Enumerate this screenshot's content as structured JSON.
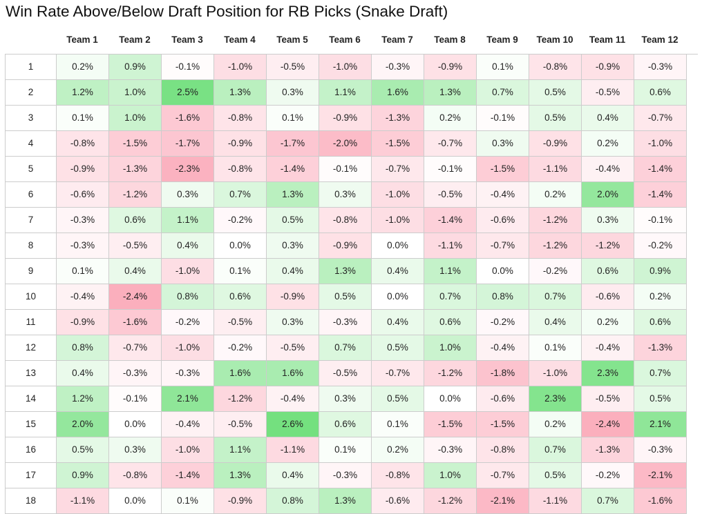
{
  "chart_data": {
    "type": "heatmap",
    "title": "Win Rate Above/Below Draft Position for RB Picks (Snake Draft)",
    "columns": [
      "Team 1",
      "Team 2",
      "Team 3",
      "Team 4",
      "Team 5",
      "Team 6",
      "Team 7",
      "Team 8",
      "Team 9",
      "Team 10",
      "Team 11",
      "Team 12"
    ],
    "rows": [
      "1",
      "2",
      "3",
      "4",
      "5",
      "6",
      "7",
      "8",
      "9",
      "10",
      "11",
      "12",
      "13",
      "14",
      "15",
      "16",
      "17",
      "18"
    ],
    "values": [
      [
        0.2,
        0.9,
        -0.1,
        -1.0,
        -0.5,
        -1.0,
        -0.3,
        -0.9,
        0.1,
        -0.8,
        -0.9,
        -0.3
      ],
      [
        1.2,
        1.0,
        2.5,
        1.3,
        0.3,
        1.1,
        1.6,
        1.3,
        0.7,
        0.5,
        -0.5,
        0.6
      ],
      [
        0.1,
        1.0,
        -1.6,
        -0.8,
        0.1,
        -0.9,
        -1.3,
        0.2,
        -0.1,
        0.5,
        0.4,
        -0.7
      ],
      [
        -0.8,
        -1.5,
        -1.7,
        -0.9,
        -1.7,
        -2.0,
        -1.5,
        -0.7,
        0.3,
        -0.9,
        0.2,
        -1.0
      ],
      [
        -0.9,
        -1.3,
        -2.3,
        -0.8,
        -1.4,
        -0.1,
        -0.7,
        -0.1,
        -1.5,
        -1.1,
        -0.4,
        -1.4
      ],
      [
        -0.6,
        -1.2,
        0.3,
        0.7,
        1.3,
        0.3,
        -1.0,
        -0.5,
        -0.4,
        0.2,
        2.0,
        -1.4
      ],
      [
        -0.3,
        0.6,
        1.1,
        -0.2,
        0.5,
        -0.8,
        -1.0,
        -1.4,
        -0.6,
        -1.2,
        0.3,
        -0.1
      ],
      [
        -0.3,
        -0.5,
        0.4,
        0.0,
        0.3,
        -0.9,
        0.0,
        -1.1,
        -0.7,
        -1.2,
        -1.2,
        -0.2
      ],
      [
        0.1,
        0.4,
        -1.0,
        0.1,
        0.4,
        1.3,
        0.4,
        1.1,
        0.0,
        -0.2,
        0.6,
        0.9
      ],
      [
        -0.4,
        -2.4,
        0.8,
        0.6,
        -0.9,
        0.5,
        0.0,
        0.7,
        0.8,
        0.7,
        -0.6,
        0.2
      ],
      [
        -0.9,
        -1.6,
        -0.2,
        -0.5,
        0.3,
        -0.3,
        0.4,
        0.6,
        -0.2,
        0.4,
        0.2,
        0.6
      ],
      [
        0.8,
        -0.7,
        -1.0,
        -0.2,
        -0.5,
        0.7,
        0.5,
        1.0,
        -0.4,
        0.1,
        -0.4,
        -1.3
      ],
      [
        0.4,
        -0.3,
        -0.3,
        1.6,
        1.6,
        -0.5,
        -0.7,
        -1.2,
        -1.8,
        -1.0,
        2.3,
        0.7
      ],
      [
        1.2,
        -0.1,
        2.1,
        -1.2,
        -0.4,
        0.3,
        0.5,
        0.0,
        -0.6,
        2.3,
        -0.5,
        0.5
      ],
      [
        2.0,
        0.0,
        -0.4,
        -0.5,
        2.6,
        0.6,
        0.1,
        -1.5,
        -1.5,
        0.2,
        -2.4,
        2.1
      ],
      [
        0.5,
        0.3,
        -1.0,
        1.1,
        -1.1,
        0.1,
        0.2,
        -0.3,
        -0.8,
        0.7,
        -1.3,
        -0.3
      ],
      [
        0.9,
        -0.8,
        -1.4,
        1.3,
        0.4,
        -0.3,
        -0.8,
        1.0,
        -0.7,
        0.5,
        -0.2,
        -2.1
      ],
      [
        -1.1,
        0.0,
        0.1,
        -0.9,
        0.8,
        1.3,
        -0.6,
        -1.2,
        -2.1,
        -1.1,
        0.7,
        -1.6
      ]
    ],
    "value_suffix": "%",
    "colors": {
      "positive": "#74e07f",
      "negative": "#fba8b8",
      "neutral": "#ffffff"
    }
  }
}
